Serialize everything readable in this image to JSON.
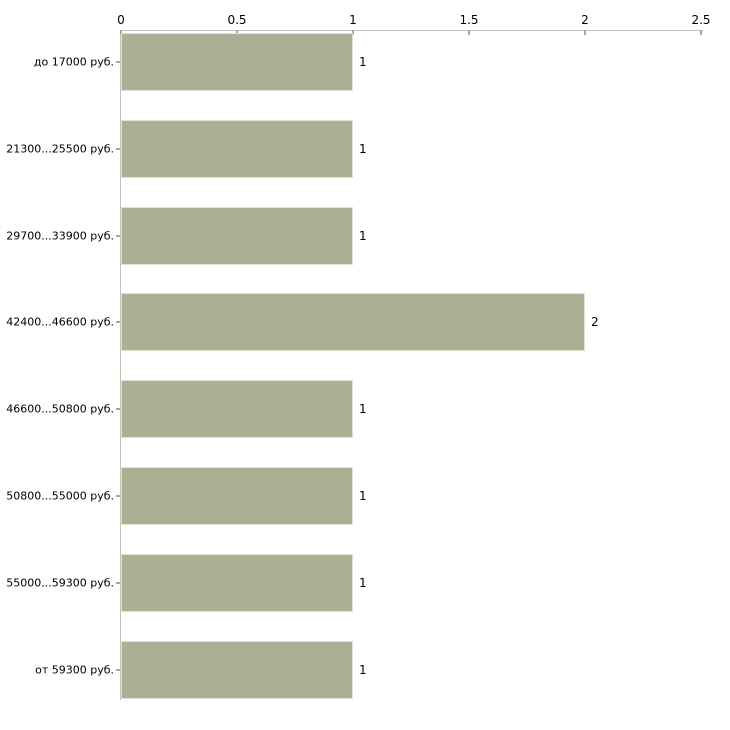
{
  "chart_data": {
    "type": "bar",
    "orientation": "horizontal",
    "title": "",
    "xlabel": "",
    "ylabel": "",
    "categories": [
      "до 17000 руб.",
      "21300...25500 руб.",
      "29700...33900 руб.",
      "42400...46600 руб.",
      "46600...50800 руб.",
      "50800...55000 руб.",
      "55000...59300 руб.",
      "от 59300 руб."
    ],
    "values": [
      1,
      1,
      1,
      2,
      1,
      1,
      1,
      1
    ],
    "value_labels": [
      "1",
      "1",
      "1",
      "2",
      "1",
      "1",
      "1",
      "1"
    ],
    "x_ticks": [
      0,
      0.5,
      1,
      1.5,
      2,
      2.5
    ],
    "x_tick_labels": [
      "0",
      "0.5",
      "1",
      "1.5",
      "2",
      "2.5"
    ],
    "xlim": [
      0,
      2.5
    ],
    "axis_position": "top",
    "grid": false,
    "legend": false,
    "colors": {
      "bar_fill": "#aab093",
      "bar_edge": "#dfe2d2",
      "axis_line": "#c0c2bb",
      "tick_mark": "#a6ac83",
      "text": "#000000",
      "background": "#ffffff"
    }
  }
}
